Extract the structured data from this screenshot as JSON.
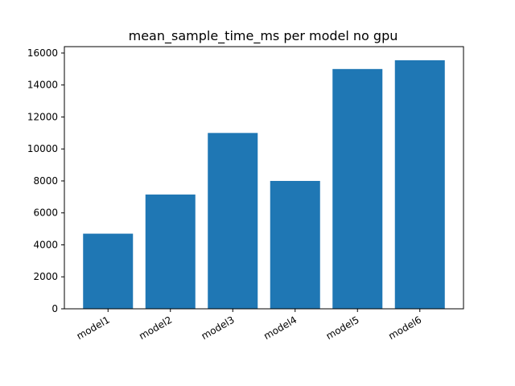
{
  "chart_data": {
    "type": "bar",
    "title": "mean_sample_time_ms per model no gpu",
    "xlabel": "",
    "ylabel": "",
    "categories": [
      "model1",
      "model2",
      "model3",
      "model4",
      "model5",
      "model6"
    ],
    "values": [
      4700,
      7150,
      11000,
      8000,
      15000,
      15550
    ],
    "ylim": [
      0,
      16400
    ],
    "yticks": [
      0,
      2000,
      4000,
      6000,
      8000,
      10000,
      12000,
      14000,
      16000
    ],
    "bar_color": "#1f77b4",
    "grid": false,
    "legend": "none",
    "xtick_rotation_deg": 30
  }
}
